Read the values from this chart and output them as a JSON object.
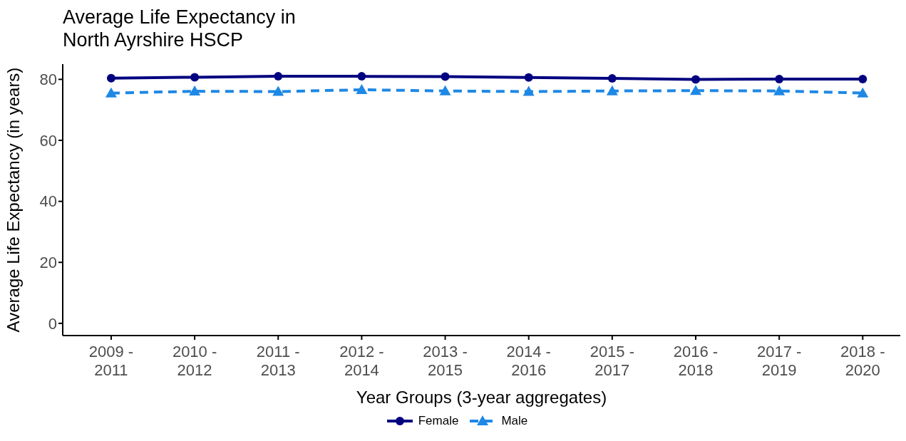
{
  "chart_data": {
    "type": "line",
    "title": "Average Life Expectancy in North Ayrshire HSCP",
    "xlabel": "Year Groups (3-year aggregates)",
    "ylabel": "Average Life Expectancy (in years)",
    "categories": [
      "2009 - 2011",
      "2010 - 2012",
      "2011 - 2013",
      "2012 - 2014",
      "2013 - 2015",
      "2014 - 2016",
      "2015 - 2017",
      "2016 - 2018",
      "2017 - 2019",
      "2018 - 2020"
    ],
    "series": [
      {
        "name": "Female",
        "color": "#000080",
        "marker": "circle",
        "line_style": "solid",
        "values": [
          80.4,
          80.7,
          81.0,
          81.0,
          80.9,
          80.6,
          80.3,
          80.0,
          80.1,
          80.1
        ]
      },
      {
        "name": "Male",
        "color": "#1e88e5",
        "marker": "triangle",
        "line_style": "dashed",
        "values": [
          75.5,
          76.1,
          76.0,
          76.6,
          76.2,
          76.0,
          76.2,
          76.3,
          76.2,
          75.5
        ]
      }
    ],
    "ylim": [
      -4,
      85
    ],
    "yticks": [
      0,
      20,
      40,
      60,
      80
    ],
    "grid": false,
    "legend": "bottom"
  }
}
